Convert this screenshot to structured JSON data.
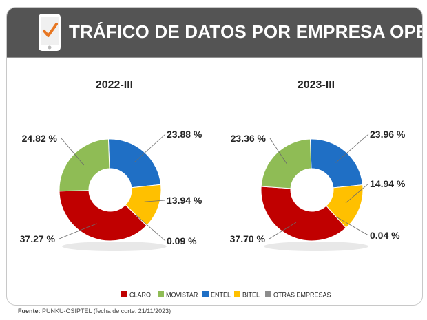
{
  "header": {
    "title": "TRÁFICO DE DATOS POR EMPRESA OPERADORA",
    "icon": "phone-check-icon"
  },
  "chart_data": [
    {
      "type": "pie",
      "title": "2022-III",
      "categories": [
        "CLARO",
        "MOVISTAR",
        "ENTEL",
        "BITEL",
        "OTRAS EMPRESAS"
      ],
      "values": [
        37.27,
        24.82,
        23.88,
        13.94,
        0.09
      ],
      "labels": [
        "37.27 %",
        "24.82 %",
        "23.88 %",
        "13.94 %",
        "0.09 %"
      ]
    },
    {
      "type": "pie",
      "title": "2023-III",
      "categories": [
        "CLARO",
        "MOVISTAR",
        "ENTEL",
        "BITEL",
        "OTRAS EMPRESAS"
      ],
      "values": [
        37.7,
        23.36,
        23.96,
        14.94,
        0.04
      ],
      "labels": [
        "37.70 %",
        "23.36 %",
        "23.96 %",
        "14.94 %",
        "0.04 %"
      ]
    }
  ],
  "legend": [
    {
      "label": "CLARO",
      "color": "#c00000"
    },
    {
      "label": "MOVISTAR",
      "color": "#8fbc55"
    },
    {
      "label": "ENTEL",
      "color": "#1f6fc5"
    },
    {
      "label": "BITEL",
      "color": "#ffc000"
    },
    {
      "label": "OTRAS EMPRESAS",
      "color": "#8c8c8c"
    }
  ],
  "colors": {
    "CLARO": "#c00000",
    "MOVISTAR": "#8fbc55",
    "ENTEL": "#1f6fc5",
    "BITEL": "#ffc000",
    "OTRAS EMPRESAS": "#8c8c8c"
  },
  "footer": {
    "source_label": "Fuente:",
    "source_text": "PUNKU-OSIPTEL (fecha de corte: 21/11/2023)"
  }
}
